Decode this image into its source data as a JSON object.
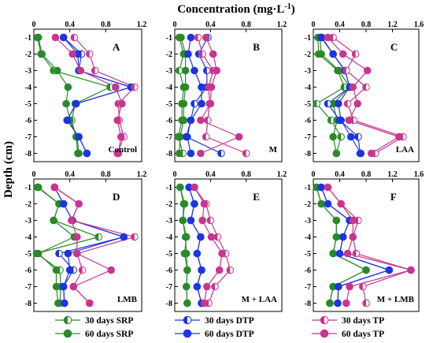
{
  "figure": {
    "x_title_main": "Concentration (mg·L",
    "x_title_sup": "-1",
    "x_title_end": ")",
    "y_title": "Depth (cm)"
  },
  "colors": {
    "SRP": "#2a8a28",
    "DTP": "#1d35e0",
    "TP": "#c8358e"
  },
  "legend": [
    {
      "days": "30 days",
      "param": "SRP",
      "fill": "half",
      "color": "SRP"
    },
    {
      "days": "60 days",
      "param": "SRP",
      "fill": "full",
      "color": "SRP"
    },
    {
      "days": "30 days",
      "param": "DTP",
      "fill": "half",
      "color": "DTP"
    },
    {
      "days": "60 days",
      "param": "DTP",
      "fill": "full",
      "color": "DTP"
    },
    {
      "days": "30 days",
      "param": "TP",
      "fill": "half",
      "color": "TP"
    },
    {
      "days": "60 days",
      "param": "TP",
      "fill": "full",
      "color": "TP"
    }
  ],
  "chart_data": [
    {
      "type": "line",
      "panel": "A",
      "label": "Control",
      "xlim": [
        0,
        1.2
      ],
      "xticks": [
        "0",
        "0.4",
        "0.8",
        "1.2"
      ],
      "depth": [
        -1,
        -2,
        -3,
        -4,
        -5,
        -6,
        -7,
        -8
      ],
      "yticks": [
        "-1",
        "-2",
        "-3",
        "-4",
        "-5",
        "-6",
        "-7",
        "-8"
      ],
      "ylim": [
        -8.5,
        -0.5
      ],
      "series": [
        {
          "param": "SRP",
          "days": "30 days",
          "x": [
            0.04,
            0.08,
            0.22,
            0.85,
            0.46,
            0.42,
            0.47,
            0.49
          ]
        },
        {
          "param": "SRP",
          "days": "60 days",
          "x": [
            0.05,
            0.09,
            0.26,
            0.38,
            0.36,
            0.4,
            0.48,
            0.5
          ]
        },
        {
          "param": "DTP",
          "days": "30 days",
          "x": [
            0.33,
            0.53,
            0.5,
            1.08,
            0.47,
            0.37,
            0.5,
            0.59
          ]
        },
        {
          "param": "DTP",
          "days": "60 days",
          "x": [
            0.33,
            0.49,
            0.5,
            1.08,
            0.47,
            0.37,
            0.5,
            0.59
          ]
        },
        {
          "param": "TP",
          "days": "30 days",
          "x": [
            0.45,
            0.62,
            0.68,
            1.12,
            0.94,
            0.95,
            1.0,
            0.93
          ]
        },
        {
          "param": "TP",
          "days": "60 days",
          "x": [
            0.24,
            0.43,
            0.52,
            0.91,
            0.98,
            0.93,
            0.97,
            0.94
          ]
        }
      ]
    },
    {
      "type": "line",
      "panel": "B",
      "label": "M",
      "xlim": [
        0,
        1.2
      ],
      "xticks": [
        "0",
        "0.4",
        "0.8",
        "1.2"
      ],
      "depth": [
        -1,
        -2,
        -3,
        -4,
        -5,
        -6,
        -7,
        -8
      ],
      "yticks": [
        "-1",
        "-2",
        "-3",
        "-4",
        "-5",
        "-6",
        "-7",
        "-8"
      ],
      "ylim": [
        -8.5,
        -0.5
      ],
      "series": [
        {
          "param": "SRP",
          "days": "30 days",
          "x": [
            0.05,
            0.1,
            0.05,
            0.1,
            0.08,
            0.08,
            0.04,
            0.09
          ]
        },
        {
          "param": "SRP",
          "days": "60 days",
          "x": [
            0.07,
            0.12,
            0.12,
            0.12,
            0.1,
            0.1,
            0.06,
            0.05
          ]
        },
        {
          "param": "DTP",
          "days": "30 days",
          "x": [
            0.37,
            0.27,
            0.36,
            0.36,
            0.22,
            0.18,
            0.13,
            0.52
          ]
        },
        {
          "param": "DTP",
          "days": "60 days",
          "x": [
            0.18,
            0.15,
            0.22,
            0.3,
            0.3,
            0.18,
            0.14,
            0.18
          ]
        },
        {
          "param": "TP",
          "days": "30 days",
          "x": [
            0.26,
            0.31,
            0.43,
            0.38,
            0.39,
            0.37,
            0.35,
            0.8
          ]
        },
        {
          "param": "TP",
          "days": "60 days",
          "x": [
            0.35,
            0.43,
            0.47,
            0.41,
            0.4,
            0.29,
            0.72,
            0.29
          ]
        }
      ]
    },
    {
      "type": "line",
      "panel": "C",
      "label": "LAA",
      "xlim": [
        0,
        1.6
      ],
      "xticks": [
        "0",
        "0.4",
        "0.8",
        "1.2",
        "1.6"
      ],
      "depth": [
        -1,
        -2,
        -3,
        -4,
        -5,
        -6,
        -7,
        -8
      ],
      "yticks": [
        "-1",
        "-2",
        "-3",
        "-4",
        "-5",
        "-6",
        "-7",
        "-8"
      ],
      "ylim": [
        -8.5,
        -0.5
      ],
      "series": [
        {
          "param": "SRP",
          "days": "30 days",
          "x": [
            0.07,
            0.08,
            0.37,
            0.47,
            0.05,
            0.27,
            0.42,
            0.35
          ]
        },
        {
          "param": "SRP",
          "days": "60 days",
          "x": [
            0.1,
            0.12,
            0.39,
            0.55,
            0.3,
            0.36,
            0.3,
            0.35
          ]
        },
        {
          "param": "DTP",
          "days": "30 days",
          "x": [
            0.12,
            0.3,
            0.48,
            0.55,
            0.22,
            0.4,
            0.68,
            0.71
          ]
        },
        {
          "param": "DTP",
          "days": "60 days",
          "x": [
            0.13,
            0.3,
            0.48,
            0.55,
            0.38,
            0.42,
            0.57,
            0.72
          ]
        },
        {
          "param": "TP",
          "days": "30 days",
          "x": [
            0.3,
            0.64,
            0.5,
            0.8,
            0.52,
            0.61,
            1.36,
            0.94
          ]
        },
        {
          "param": "TP",
          "days": "60 days",
          "x": [
            0.22,
            0.45,
            0.82,
            0.6,
            0.67,
            0.54,
            1.3,
            0.88
          ]
        }
      ]
    },
    {
      "type": "line",
      "panel": "D",
      "label": "LMB",
      "xlim": [
        0,
        1.2
      ],
      "xticks": [
        "0",
        "0.4",
        "0.8",
        "1.2"
      ],
      "depth": [
        -1,
        -2,
        -3,
        -4,
        -5,
        -6,
        -7,
        -8
      ],
      "yticks": [
        "-1",
        "-2",
        "-3",
        "-4",
        "-5",
        "-6",
        "-7",
        "-8"
      ],
      "ylim": [
        -8.5,
        -0.5
      ],
      "series": [
        {
          "param": "SRP",
          "days": "30 days",
          "x": [
            0.04,
            0.28,
            0.22,
            0.72,
            0.03,
            0.29,
            0.3,
            0.29
          ]
        },
        {
          "param": "SRP",
          "days": "60 days",
          "x": [
            0.05,
            0.28,
            0.22,
            0.45,
            0.05,
            0.25,
            0.25,
            0.27
          ]
        },
        {
          "param": "DTP",
          "days": "30 days",
          "x": [
            0.23,
            0.33,
            0.43,
            1.0,
            0.28,
            0.44,
            0.33,
            0.34
          ]
        },
        {
          "param": "DTP",
          "days": "60 days",
          "x": [
            0.23,
            0.33,
            0.43,
            1.0,
            0.38,
            0.4,
            0.33,
            0.34
          ]
        },
        {
          "param": "TP",
          "days": "30 days",
          "x": [
            0.23,
            0.5,
            0.42,
            1.12,
            0.48,
            0.54,
            0.44,
            0.62
          ]
        },
        {
          "param": "TP",
          "days": "60 days",
          "x": [
            0.23,
            0.5,
            0.42,
            0.48,
            0.48,
            0.86,
            0.44,
            0.62
          ]
        }
      ]
    },
    {
      "type": "line",
      "panel": "E",
      "label": "M + LAA",
      "xlim": [
        0,
        1.2
      ],
      "xticks": [
        "0",
        "0.4",
        "0.8",
        "1.2"
      ],
      "depth": [
        -1,
        -2,
        -3,
        -4,
        -5,
        -6,
        -7,
        -8
      ],
      "yticks": [
        "-1",
        "-2",
        "-3",
        "-4",
        "-5",
        "-6",
        "-7",
        "-8"
      ],
      "ylim": [
        -8.5,
        -0.5
      ],
      "series": [
        {
          "param": "SRP",
          "days": "30 days",
          "x": [
            0.06,
            0.1,
            0.09,
            0.13,
            0.11,
            0.14,
            0.13,
            0.14
          ]
        },
        {
          "param": "SRP",
          "days": "60 days",
          "x": [
            0.06,
            0.11,
            0.09,
            0.12,
            0.13,
            0.14,
            0.13,
            0.14
          ]
        },
        {
          "param": "DTP",
          "days": "30 days",
          "x": [
            0.16,
            0.22,
            0.18,
            0.29,
            0.25,
            0.3,
            0.25,
            0.3
          ]
        },
        {
          "param": "DTP",
          "days": "60 days",
          "x": [
            0.16,
            0.22,
            0.18,
            0.29,
            0.25,
            0.3,
            0.25,
            0.3
          ]
        },
        {
          "param": "TP",
          "days": "30 days",
          "x": [
            0.22,
            0.35,
            0.4,
            0.48,
            0.57,
            0.62,
            0.45,
            0.38
          ]
        },
        {
          "param": "TP",
          "days": "60 days",
          "x": [
            0.22,
            0.33,
            0.31,
            0.41,
            0.53,
            0.5,
            0.36,
            0.33
          ]
        }
      ]
    },
    {
      "type": "line",
      "panel": "F",
      "label": "M + LMB",
      "xlim": [
        0,
        1.6
      ],
      "xticks": [
        "0",
        "0.4",
        "0.8",
        "1.2",
        "1.6"
      ],
      "depth": [
        -1,
        -2,
        -3,
        -4,
        -5,
        -6,
        -7,
        -8
      ],
      "yticks": [
        "-1",
        "-2",
        "-3",
        "-4",
        "-5",
        "-6",
        "-7",
        "-8"
      ],
      "ylim": [
        -8.5,
        -0.5
      ],
      "series": [
        {
          "param": "SRP",
          "days": "30 days",
          "x": [
            0.05,
            0.12,
            0.35,
            0.35,
            0.3,
            0.8,
            0.3,
            0.25
          ]
        },
        {
          "param": "SRP",
          "days": "60 days",
          "x": [
            0.05,
            0.12,
            0.35,
            0.35,
            0.3,
            0.8,
            0.3,
            0.25
          ]
        },
        {
          "param": "DTP",
          "days": "30 days",
          "x": [
            0.12,
            0.22,
            0.55,
            0.45,
            0.4,
            1.15,
            0.38,
            0.37
          ]
        },
        {
          "param": "DTP",
          "days": "60 days",
          "x": [
            0.12,
            0.22,
            0.55,
            0.45,
            0.4,
            1.15,
            0.38,
            0.37
          ]
        },
        {
          "param": "TP",
          "days": "30 days",
          "x": [
            0.22,
            0.42,
            0.68,
            0.6,
            0.65,
            1.48,
            0.75,
            0.8
          ]
        },
        {
          "param": "TP",
          "days": "60 days",
          "x": [
            0.22,
            0.42,
            0.6,
            0.6,
            0.52,
            1.48,
            0.55,
            0.5
          ]
        }
      ]
    }
  ]
}
